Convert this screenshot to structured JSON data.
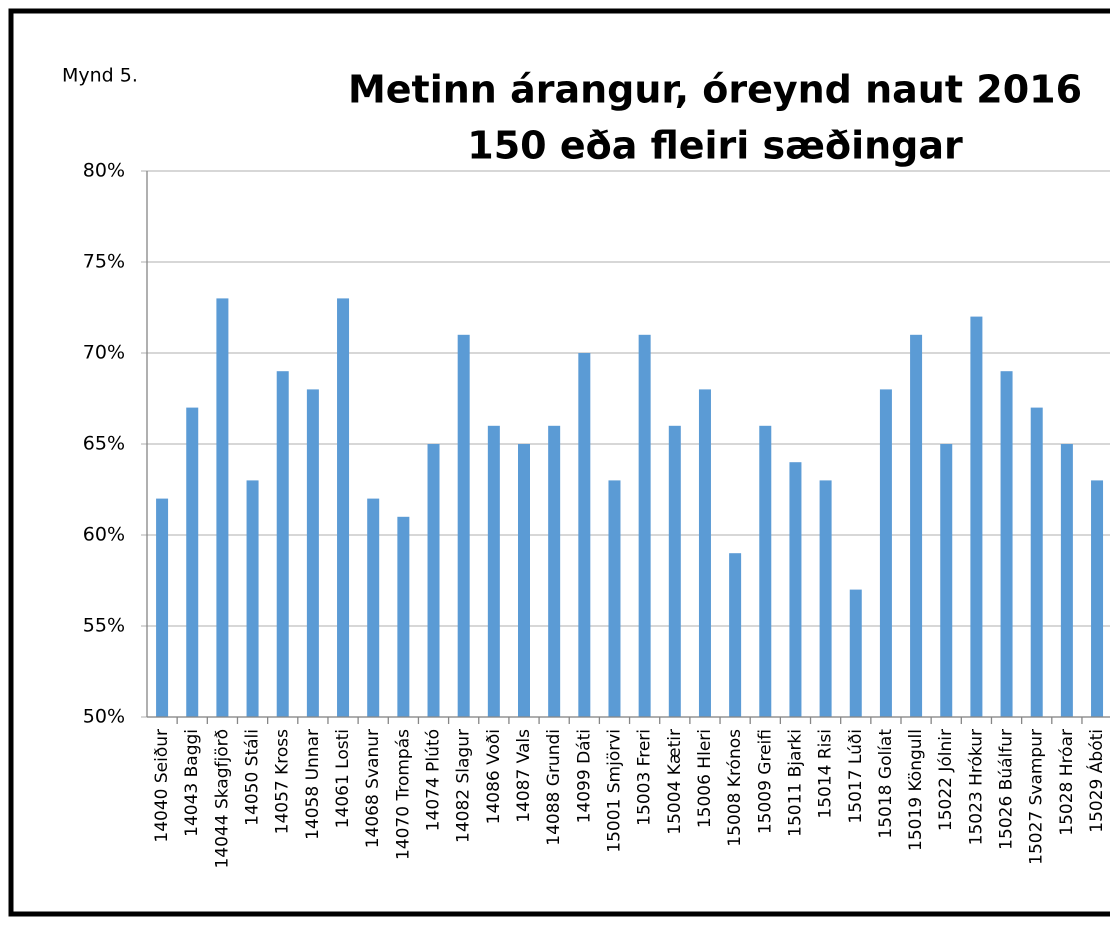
{
  "chart_data": {
    "type": "bar",
    "label": "Mynd 5.",
    "title": [
      "Metinn árangur, óreynd naut 2016",
      "150 eða fleiri sæðingar"
    ],
    "categories": [
      "14040 Seiður",
      "14043 Baggi",
      "14044 Skagfjörð",
      "14050 Stáli",
      "14057 Kross",
      "14058 Unnar",
      "14061 Losti",
      "14068 Svanur",
      "14070 Trompás",
      "14074 Plútó",
      "14082 Slagur",
      "14086 Voði",
      "14087 Vals",
      "14088 Grundi",
      "14099 Dáti",
      "15001 Smjörvi",
      "15003 Freri",
      "15004 Kætir",
      "15006 Hleri",
      "15008 Krónos",
      "15009 Greifi",
      "15011 Bjarki",
      "15014 Risi",
      "15017 Lúði",
      "15018 Golíat",
      "15019 Köngull",
      "15022 Jólnir",
      "15023 Hrókur",
      "15026 Búálfur",
      "15027 Svampur",
      "15028 Hróar",
      "15029 Ábóti"
    ],
    "values": [
      62,
      67,
      73,
      63,
      69,
      68,
      73,
      62,
      61,
      65,
      71,
      66,
      65,
      66,
      70,
      63,
      71,
      66,
      68,
      59,
      66,
      64,
      63,
      57,
      68,
      71,
      65,
      72,
      69,
      67,
      65,
      63
    ],
    "color": "#5b9bd5",
    "ylim": [
      50,
      80
    ],
    "yticks": [
      {
        "value": 50,
        "label": "50%"
      },
      {
        "value": 55,
        "label": "55%"
      },
      {
        "value": 60,
        "label": "60%"
      },
      {
        "value": 65,
        "label": "65%"
      },
      {
        "value": 70,
        "label": "70%"
      },
      {
        "value": 75,
        "label": "75%"
      },
      {
        "value": 80,
        "label": "80%"
      }
    ],
    "grid": true
  }
}
